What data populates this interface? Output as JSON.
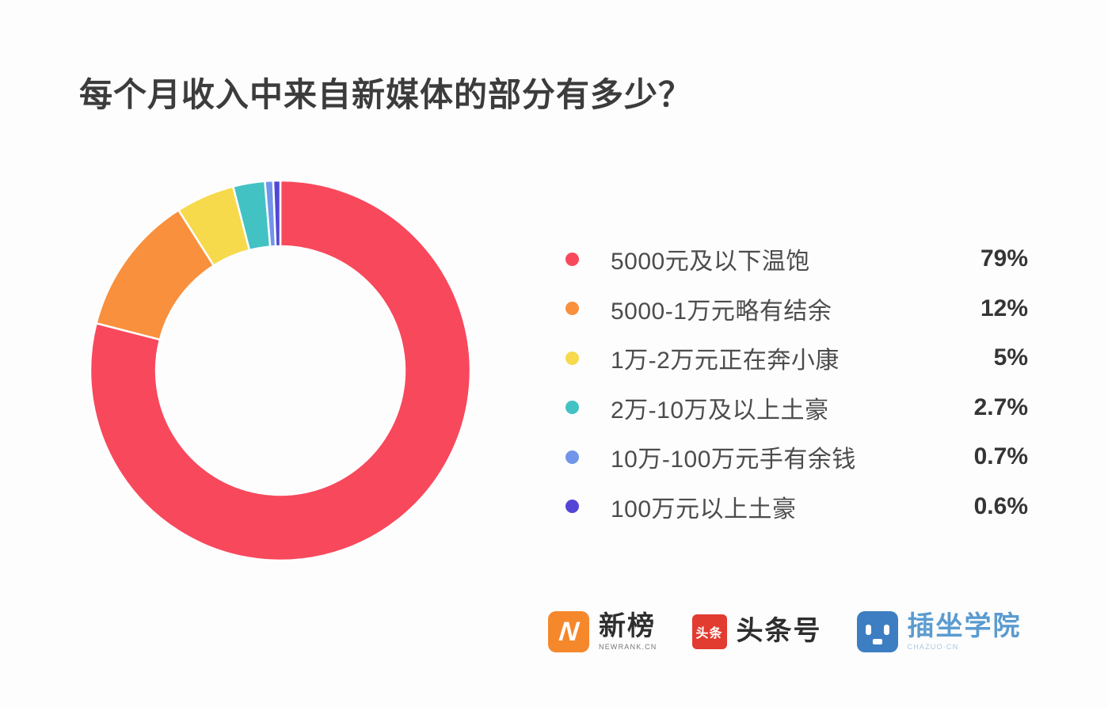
{
  "title": "每个月收入中来自新媒体的部分有多少？",
  "chart_data": {
    "type": "pie",
    "donut": true,
    "title": "每个月收入中来自新媒体的部分有多少？",
    "categories": [
      "5000元及以下温饱",
      "5000-1万元略有结余",
      "1万-2万元正在奔小康",
      "2万-10万及以上土豪",
      "10万-100万元手有余钱",
      "100万元以上土豪"
    ],
    "values": [
      79,
      12,
      5,
      2.7,
      0.7,
      0.6
    ],
    "value_labels": [
      "79%",
      "12%",
      "5%",
      "2.7%",
      "0.7%",
      "0.6%"
    ],
    "colors": [
      "#f8485c",
      "#f8903e",
      "#f7d94c",
      "#43c2c4",
      "#7195e9",
      "#5346d5"
    ],
    "start_angle_deg": 0,
    "direction": "clockwise",
    "inner_radius_ratio": 0.654,
    "slice_gap_color": "#ffffff",
    "legend_position": "right"
  },
  "footer": {
    "logos": [
      {
        "name": "newrank",
        "badge_letter": "N",
        "brand": "新榜",
        "sub": "NEWRANK.CN",
        "badge_color": "#f5882b"
      },
      {
        "name": "toutiao",
        "badge_text": "头条",
        "brand": "头条号",
        "badge_color": "#e23b30"
      },
      {
        "name": "chazuo",
        "brand": "插坐学院",
        "sub": "CHAZUO·CN",
        "badge_color": "#3d7ec2"
      }
    ]
  }
}
